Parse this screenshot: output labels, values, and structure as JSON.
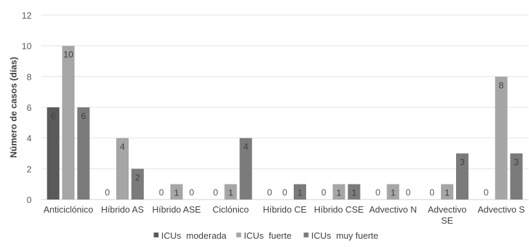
{
  "chart_data": {
    "type": "bar",
    "categories": [
      "Anticiclónico",
      "Híbrido AS",
      "Híbrido ASE",
      "Ciclónico",
      "Híbrido CE",
      "Híbrido CSE",
      "Advectivo N",
      "Advectivo SE",
      "Advectivo S"
    ],
    "category_lines": [
      [
        "Anticiclónico"
      ],
      [
        "Híbrido AS"
      ],
      [
        "Híbrido ASE"
      ],
      [
        "Ciclónico"
      ],
      [
        "Híbrido CE"
      ],
      [
        "Híbrido CSE"
      ],
      [
        "Advectivo N"
      ],
      [
        "Advectivo",
        "SE"
      ],
      [
        "Advectivo S"
      ]
    ],
    "series": [
      {
        "name": "ICUs  moderada",
        "values": [
          6,
          0,
          0,
          0,
          0,
          0,
          0,
          0,
          0
        ],
        "color": "#5a5a5a"
      },
      {
        "name": "ICUs  fuerte",
        "values": [
          10,
          4,
          1,
          1,
          0,
          1,
          1,
          1,
          8
        ],
        "color": "#a6a6a6"
      },
      {
        "name": "ICUs  muy fuerte",
        "values": [
          6,
          2,
          0,
          4,
          1,
          1,
          0,
          3,
          3
        ],
        "color": "#7b7b7b"
      }
    ],
    "title": "",
    "xlabel": "",
    "ylabel": "Número de casos (días)",
    "ylim": [
      0,
      12
    ],
    "yticks": [
      0,
      2,
      4,
      6,
      8,
      10,
      12
    ],
    "grid": true,
    "legend": "bottom-center",
    "data_labels": true
  }
}
